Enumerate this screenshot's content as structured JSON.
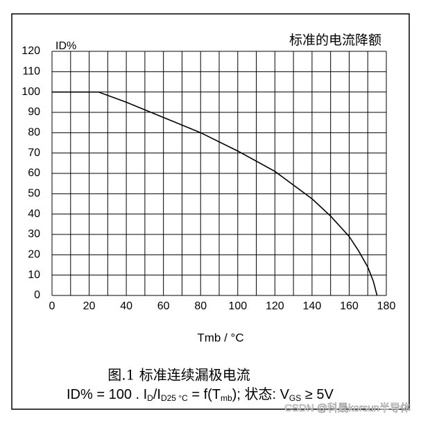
{
  "chart_data": {
    "type": "line",
    "title": "标准的电流降额",
    "y_label": "ID%",
    "x_label": "Tmb / °C",
    "caption": "图.1  标准连续漏极电流",
    "formula": [
      "ID% = 100 . I",
      "D",
      "/I",
      "D25 °C",
      " = f(T",
      "mb",
      "); 状态: V",
      "GS",
      " ≥ 5V"
    ],
    "watermark": "CSDN @科晟korsun半导体",
    "x": [
      0,
      25,
      40,
      60,
      80,
      100,
      120,
      140,
      150,
      160,
      165,
      170,
      173,
      175
    ],
    "series": [
      {
        "color": "#000000",
        "values": [
          100,
          100,
          95,
          87.5,
          80,
          71,
          61,
          47.5,
          39,
          29,
          22,
          14,
          7,
          0
        ]
      }
    ],
    "xlim": [
      0,
      180
    ],
    "ylim": [
      0,
      120
    ],
    "xticks": [
      0,
      20,
      40,
      60,
      80,
      100,
      120,
      140,
      160,
      180
    ],
    "x_minor_ticks": [
      10,
      30,
      50,
      70,
      90,
      110,
      130,
      150,
      170
    ],
    "yticks": [
      0,
      10,
      20,
      30,
      40,
      50,
      60,
      70,
      80,
      90,
      100,
      110,
      120
    ],
    "grid": true
  }
}
